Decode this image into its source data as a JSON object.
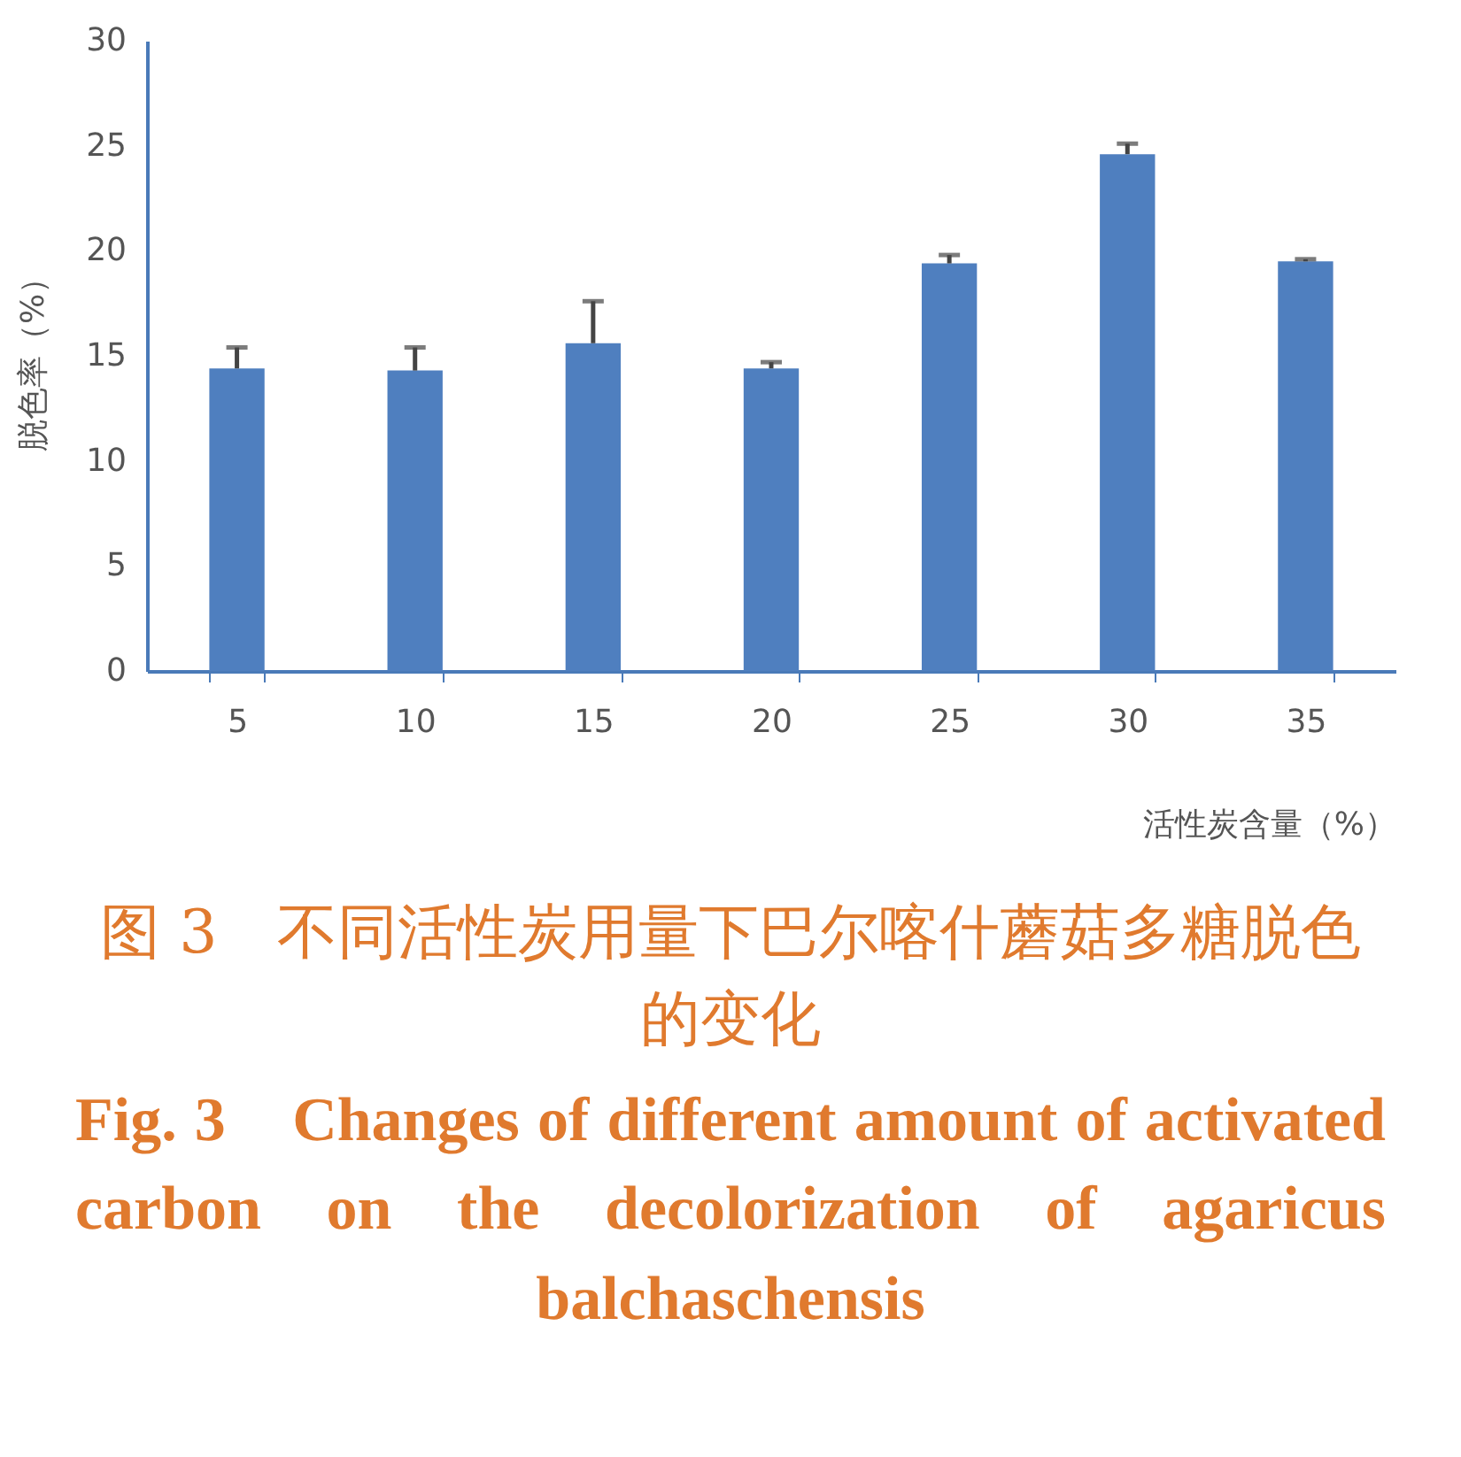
{
  "chart_data": {
    "type": "bar",
    "title": "图 3　不同活性炭用量下巴尔喀什蘑菇多糖脱色的变化",
    "subtitle": "Fig. 3　Changes of different amount of activated carbon on the decolorization of agaricus balchaschensis",
    "xlabel": "活性炭含量（%）",
    "ylabel": "脱色率（%）",
    "categories": [
      "5",
      "10",
      "15",
      "20",
      "25",
      "30",
      "35"
    ],
    "values": [
      14.4,
      14.3,
      15.6,
      14.4,
      19.4,
      24.6,
      19.5
    ],
    "errors": [
      [
        14.4,
        15.4
      ],
      [
        14.3,
        15.4
      ],
      [
        15.6,
        17.6
      ],
      [
        14.4,
        14.7
      ],
      [
        19.4,
        19.8
      ],
      [
        24.6,
        25.1
      ],
      [
        19.5,
        19.6
      ]
    ],
    "color": "#4f7fbf",
    "ylim": [
      0,
      30
    ],
    "yticks": [
      0,
      5,
      10,
      15,
      20,
      25,
      30
    ],
    "grid": false
  }
}
